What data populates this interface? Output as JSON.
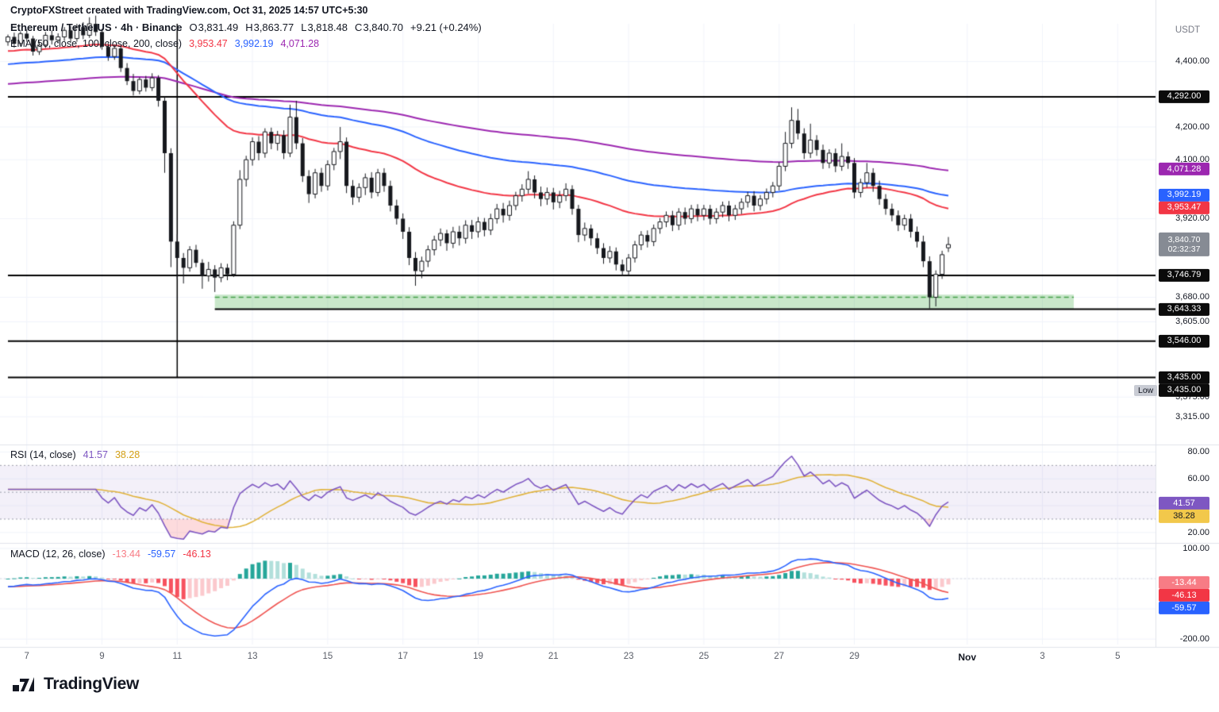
{
  "watermark": "CryptoFXStreet created with TradingView.com, Oct 31, 2025 14:57 UTC+5:30",
  "legend": {
    "symbol": "Ethereum / TetherUS · 4h · Binance",
    "ohlc": [
      {
        "label": "O",
        "value": "3,831.49"
      },
      {
        "label": "H",
        "value": "3,863.77"
      },
      {
        "label": "L",
        "value": "3,818.48"
      },
      {
        "label": "C",
        "value": "3,840.70"
      }
    ],
    "change": "+9.21 (+0.24%)",
    "ema_label": "EMA (50, close, 100, close, 200, close)",
    "ema_values": [
      {
        "value": "3,953.47",
        "color": "#f23645"
      },
      {
        "value": "3,992.19",
        "color": "#2962ff"
      },
      {
        "value": "4,071.28",
        "color": "#9c27b0"
      }
    ],
    "rsi_label": "RSI (14, close)",
    "rsi_values": [
      {
        "value": "41.57",
        "color": "#7e57c2"
      },
      {
        "value": "38.28",
        "color": "#d4a017"
      }
    ],
    "macd_label": "MACD (12, 26, close)",
    "macd_values": [
      {
        "value": "-13.44",
        "color": "#f77c85"
      },
      {
        "value": "-59.57",
        "color": "#2962ff"
      },
      {
        "value": "-46.13",
        "color": "#f23645"
      }
    ]
  },
  "axis": {
    "currency": "USDT",
    "price_ticks": [
      4400,
      4200,
      4100,
      3920,
      3680,
      3605,
      3375,
      3315
    ],
    "price_badges": [
      {
        "price": 4292.0,
        "bg": "#0b0b0b"
      },
      {
        "price": 4071.28,
        "bg": "#9c27b0"
      },
      {
        "price": 3992.19,
        "bg": "#2962ff"
      },
      {
        "price": 3953.47,
        "bg": "#f23645"
      },
      {
        "price": 3746.79,
        "bg": "#0b0b0b"
      },
      {
        "price": 3643.33,
        "bg": "#0b0b0b"
      },
      {
        "price": 3546.0,
        "bg": "#0b0b0b"
      },
      {
        "price": 3435.0,
        "bg": "#0b0b0b"
      }
    ],
    "countdown": {
      "price": 3840.7,
      "time": "02:32:37",
      "bg": "#868b94"
    },
    "low": {
      "label": "Low",
      "price": 3435.0
    },
    "rsi_badges": [
      {
        "value": 41.57,
        "bg": "#7e57c2",
        "fg": "#ffffff"
      },
      {
        "value": 38.28,
        "bg": "#f2c84b",
        "fg": "#131722"
      }
    ],
    "macd_badges": [
      {
        "value": -13.44,
        "bg": "#f77c85",
        "fg": "#ffffff"
      },
      {
        "value": -46.13,
        "bg": "#f23645",
        "fg": "#ffffff"
      },
      {
        "value": -59.57,
        "bg": "#2962ff",
        "fg": "#ffffff"
      }
    ]
  },
  "xaxis": {
    "labels": [
      {
        "t": "7",
        "i": 3
      },
      {
        "t": "9",
        "i": 15
      },
      {
        "t": "11",
        "i": 27
      },
      {
        "t": "13",
        "i": 39
      },
      {
        "t": "15",
        "i": 51
      },
      {
        "t": "17",
        "i": 63
      },
      {
        "t": "19",
        "i": 75
      },
      {
        "t": "21",
        "i": 87
      },
      {
        "t": "23",
        "i": 99
      },
      {
        "t": "25",
        "i": 111
      },
      {
        "t": "27",
        "i": 123
      },
      {
        "t": "29",
        "i": 135
      },
      {
        "t": "Nov",
        "i": 153,
        "bold": true
      },
      {
        "t": "3",
        "i": 165
      },
      {
        "t": "5",
        "i": 177
      }
    ]
  },
  "logo": {
    "text": "TradingView"
  },
  "chart_data": {
    "type": "candlestick",
    "title": "Ethereum / TetherUS · 4h · Binance",
    "pair": "Ethereum / TetherUS",
    "timeframe": "4h",
    "exchange": "Binance",
    "ylabel": "USDT",
    "ylim": [
      3240,
      4515
    ],
    "interval_hours": 4,
    "last": {
      "price": 3840.7,
      "change": 9.21,
      "change_pct": 0.24
    },
    "candles": [
      [
        4460,
        4482,
        4448,
        4475
      ],
      [
        4475,
        4488,
        4442,
        4455
      ],
      [
        4455,
        4492,
        4446,
        4485
      ],
      [
        4485,
        4498,
        4460,
        4470
      ],
      [
        4470,
        4478,
        4418,
        4430
      ],
      [
        4430,
        4462,
        4420,
        4450
      ],
      [
        4450,
        4490,
        4441,
        4480
      ],
      [
        4480,
        4495,
        4452,
        4465
      ],
      [
        4465,
        4486,
        4455,
        4475
      ],
      [
        4475,
        4505,
        4462,
        4495
      ],
      [
        4495,
        4508,
        4458,
        4470
      ],
      [
        4470,
        4515,
        4460,
        4505
      ],
      [
        4505,
        4520,
        4468,
        4480
      ],
      [
        4480,
        4535,
        4472,
        4515
      ],
      [
        4515,
        4540,
        4478,
        4490
      ],
      [
        4490,
        4500,
        4436,
        4445
      ],
      [
        4445,
        4458,
        4402,
        4415
      ],
      [
        4415,
        4452,
        4405,
        4440
      ],
      [
        4440,
        4448,
        4368,
        4380
      ],
      [
        4380,
        4395,
        4328,
        4340
      ],
      [
        4340,
        4362,
        4296,
        4310
      ],
      [
        4310,
        4352,
        4300,
        4345
      ],
      [
        4345,
        4356,
        4308,
        4320
      ],
      [
        4320,
        4364,
        4310,
        4350
      ],
      [
        4350,
        4358,
        4262,
        4280
      ],
      [
        4280,
        4292,
        4060,
        4120
      ],
      [
        4120,
        4135,
        3772,
        3850
      ],
      [
        3850,
        3872,
        3736,
        3800
      ],
      [
        3800,
        3815,
        3722,
        3770
      ],
      [
        3770,
        3836,
        3758,
        3825
      ],
      [
        3825,
        3840,
        3772,
        3785
      ],
      [
        3785,
        3796,
        3706,
        3745
      ],
      [
        3745,
        3788,
        3728,
        3765
      ],
      [
        3765,
        3778,
        3696,
        3740
      ],
      [
        3740,
        3784,
        3726,
        3770
      ],
      [
        3770,
        3782,
        3732,
        3750
      ],
      [
        3750,
        3912,
        3742,
        3900
      ],
      [
        3900,
        4068,
        3888,
        4040
      ],
      [
        4040,
        4112,
        4018,
        4100
      ],
      [
        4100,
        4168,
        4082,
        4155
      ],
      [
        4155,
        4172,
        4098,
        4120
      ],
      [
        4120,
        4196,
        4106,
        4185
      ],
      [
        4185,
        4198,
        4132,
        4150
      ],
      [
        4150,
        4188,
        4128,
        4175
      ],
      [
        4175,
        4190,
        4102,
        4120
      ],
      [
        4120,
        4268,
        4108,
        4230
      ],
      [
        4230,
        4280,
        4132,
        4150
      ],
      [
        4150,
        4166,
        4032,
        4050
      ],
      [
        4050,
        4068,
        3968,
        3995
      ],
      [
        3995,
        4072,
        3982,
        4060
      ],
      [
        4060,
        4075,
        4002,
        4020
      ],
      [
        4020,
        4098,
        4006,
        4085
      ],
      [
        4085,
        4136,
        4068,
        4125
      ],
      [
        4125,
        4200,
        4102,
        4155
      ],
      [
        4155,
        4168,
        3998,
        4020
      ],
      [
        4020,
        4038,
        3962,
        3985
      ],
      [
        3985,
        4028,
        3970,
        4015
      ],
      [
        4015,
        4058,
        3992,
        4045
      ],
      [
        4045,
        4062,
        3982,
        4000
      ],
      [
        4000,
        4072,
        3988,
        4060
      ],
      [
        4060,
        4074,
        4002,
        4020
      ],
      [
        4020,
        4036,
        3942,
        3960
      ],
      [
        3960,
        3978,
        3902,
        3920
      ],
      [
        3920,
        3936,
        3858,
        3880
      ],
      [
        3880,
        3894,
        3778,
        3800
      ],
      [
        3800,
        3818,
        3715,
        3760
      ],
      [
        3760,
        3804,
        3738,
        3790
      ],
      [
        3790,
        3838,
        3772,
        3825
      ],
      [
        3825,
        3868,
        3808,
        3855
      ],
      [
        3855,
        3890,
        3836,
        3875
      ],
      [
        3875,
        3886,
        3822,
        3845
      ],
      [
        3845,
        3895,
        3830,
        3880
      ],
      [
        3880,
        3898,
        3838,
        3860
      ],
      [
        3860,
        3915,
        3844,
        3900
      ],
      [
        3900,
        3916,
        3858,
        3880
      ],
      [
        3880,
        3925,
        3862,
        3910
      ],
      [
        3910,
        3922,
        3866,
        3885
      ],
      [
        3885,
        3935,
        3870,
        3920
      ],
      [
        3920,
        3965,
        3905,
        3950
      ],
      [
        3950,
        3968,
        3908,
        3930
      ],
      [
        3930,
        3975,
        3914,
        3960
      ],
      [
        3960,
        4002,
        3946,
        3990
      ],
      [
        3990,
        4025,
        3972,
        4010
      ],
      [
        4010,
        4065,
        3996,
        4040
      ],
      [
        4040,
        4052,
        3982,
        4000
      ],
      [
        4000,
        4018,
        3958,
        3980
      ],
      [
        3980,
        4015,
        3962,
        4000
      ],
      [
        4000,
        4014,
        3948,
        3970
      ],
      [
        3970,
        4005,
        3952,
        3990
      ],
      [
        3990,
        4028,
        3974,
        4010
      ],
      [
        4010,
        4022,
        3932,
        3950
      ],
      [
        3950,
        3962,
        3848,
        3870
      ],
      [
        3870,
        3908,
        3852,
        3890
      ],
      [
        3890,
        3902,
        3838,
        3860
      ],
      [
        3860,
        3876,
        3812,
        3830
      ],
      [
        3830,
        3845,
        3782,
        3800
      ],
      [
        3800,
        3836,
        3785,
        3820
      ],
      [
        3820,
        3832,
        3762,
        3780
      ],
      [
        3780,
        3795,
        3745,
        3760
      ],
      [
        3760,
        3812,
        3748,
        3800
      ],
      [
        3800,
        3852,
        3786,
        3840
      ],
      [
        3840,
        3882,
        3824,
        3870
      ],
      [
        3870,
        3884,
        3832,
        3850
      ],
      [
        3850,
        3902,
        3836,
        3890
      ],
      [
        3890,
        3922,
        3874,
        3910
      ],
      [
        3910,
        3942,
        3894,
        3930
      ],
      [
        3930,
        3944,
        3882,
        3900
      ],
      [
        3900,
        3952,
        3885,
        3940
      ],
      [
        3940,
        3954,
        3902,
        3920
      ],
      [
        3920,
        3962,
        3906,
        3950
      ],
      [
        3950,
        3964,
        3912,
        3930
      ],
      [
        3930,
        3962,
        3915,
        3950
      ],
      [
        3950,
        3962,
        3902,
        3920
      ],
      [
        3920,
        3952,
        3905,
        3940
      ],
      [
        3940,
        3972,
        3924,
        3960
      ],
      [
        3960,
        3974,
        3912,
        3930
      ],
      [
        3930,
        3962,
        3916,
        3950
      ],
      [
        3950,
        3982,
        3934,
        3970
      ],
      [
        3970,
        4002,
        3954,
        3990
      ],
      [
        3990,
        4004,
        3942,
        3960
      ],
      [
        3960,
        3992,
        3945,
        3980
      ],
      [
        3980,
        4012,
        3964,
        4000
      ],
      [
        4000,
        4032,
        3985,
        4020
      ],
      [
        4020,
        4092,
        4006,
        4080
      ],
      [
        4080,
        4185,
        4065,
        4150
      ],
      [
        4150,
        4260,
        4135,
        4220
      ],
      [
        4220,
        4255,
        4162,
        4180
      ],
      [
        4180,
        4196,
        4102,
        4120
      ],
      [
        4120,
        4210,
        4105,
        4160
      ],
      [
        4160,
        4175,
        4112,
        4130
      ],
      [
        4130,
        4146,
        4072,
        4090
      ],
      [
        4090,
        4132,
        4074,
        4120
      ],
      [
        4120,
        4134,
        4062,
        4080
      ],
      [
        4080,
        4150,
        4066,
        4110
      ],
      [
        4110,
        4124,
        4072,
        4090
      ],
      [
        4090,
        4105,
        3982,
        4000
      ],
      [
        4000,
        4042,
        3985,
        4030
      ],
      [
        4030,
        4090,
        4015,
        4060
      ],
      [
        4060,
        4074,
        4002,
        4020
      ],
      [
        4020,
        4036,
        3962,
        3980
      ],
      [
        3980,
        3995,
        3932,
        3950
      ],
      [
        3950,
        3966,
        3912,
        3930
      ],
      [
        3930,
        3945,
        3882,
        3900
      ],
      [
        3900,
        3932,
        3885,
        3920
      ],
      [
        3920,
        3934,
        3862,
        3880
      ],
      [
        3880,
        3896,
        3832,
        3850
      ],
      [
        3850,
        3868,
        3772,
        3790
      ],
      [
        3790,
        3805,
        3646,
        3680
      ],
      [
        3680,
        3762,
        3652,
        3750
      ],
      [
        3750,
        3822,
        3736,
        3810
      ],
      [
        3831,
        3864,
        3818,
        3841
      ]
    ],
    "ema_periods": [
      50,
      100,
      200
    ],
    "ema_seeds": [
      4430,
      4390,
      4330
    ],
    "ema_current": [
      3953.47,
      3992.19,
      4071.28
    ],
    "levels": [
      {
        "price": 4292.0,
        "from_index": 0
      },
      {
        "price": 3746.79,
        "from_index": 0
      },
      {
        "price": 3643.33,
        "from_index": 33
      },
      {
        "price": 3546.0,
        "from_index": 0
      },
      {
        "price": 3435.0,
        "from_index": 0
      }
    ],
    "support_zone": {
      "top": 3688,
      "bottom": 3643.33,
      "dashed_at": 3680,
      "from_index": 33,
      "to_index": 170
    },
    "vertical_marker_index": 27,
    "low_marker": 3435.0,
    "rsi": {
      "period": 14,
      "current": 41.57,
      "ma_current": 38.28,
      "ylim": [
        14,
        85
      ],
      "bands": [
        70,
        50,
        30
      ],
      "ticks": [
        80,
        60,
        20
      ],
      "grid": [
        80,
        60,
        40,
        20
      ],
      "oversold": 30,
      "overbought": 70
    },
    "macd": {
      "fast": 12,
      "slow": 26,
      "signal_period": 9,
      "current_hist": -13.44,
      "current_macd": -59.57,
      "current_signal": -46.13,
      "ylim": [
        -218,
        113
      ],
      "ticks": [
        100,
        -200
      ],
      "grid": [
        100,
        0,
        -100,
        -200
      ]
    },
    "colors": {
      "ema50": "#f23645",
      "ema100": "#2962ff",
      "ema200": "#9c27b0",
      "rsi": "#7e57c2",
      "rsi_ma": "#e0b23a",
      "macd": "#2962ff",
      "signal": "#ef5350",
      "hist_pos": "#26a69a",
      "hist_pos_light": "#b2dfdb",
      "hist_neg": "#f7525f",
      "hist_neg_light": "#fbc9cd",
      "candle_up": "#ffffff",
      "candle_down": "#16181d",
      "level": "#000000",
      "zone_fill": "rgba(76,175,80,0.30)",
      "zone_line": "#43a047",
      "rsi_band_fill": "rgba(126,87,194,0.09)",
      "rsi_oversold_fill": "rgba(242,54,69,0.18)"
    }
  }
}
